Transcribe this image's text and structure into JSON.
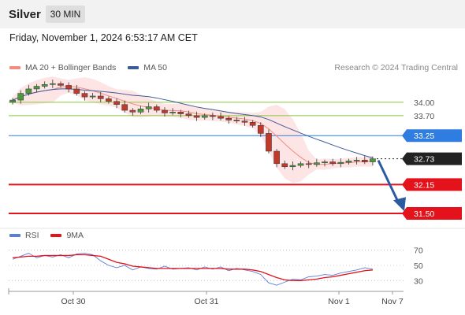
{
  "header": {
    "instrument": "Silver",
    "timeframe": "30 MIN"
  },
  "date_line": "Friday, November 1, 2024 6:53:17 AM CET",
  "legend": {
    "items": [
      {
        "label": "MA 20 + Bollinger Bands",
        "color": "#f28b82"
      },
      {
        "label": "MA 50",
        "color": "#3d5a98"
      }
    ],
    "attribution": "Research © 2024 Trading Central"
  },
  "rsi_legend": {
    "items": [
      {
        "label": "RSI",
        "color": "#5b7fd6"
      },
      {
        "label": "9MA",
        "color": "#e3121b"
      }
    ]
  },
  "colors": {
    "resistance": "#8cc63f",
    "pivot": "#2f7de1",
    "support": "#e3121b",
    "price": "#222222",
    "arrow": "#2c5aa0",
    "ma50": "#3d5a98",
    "ma20": "#f28b82",
    "bollinger": "#fde0e0"
  },
  "chart_data": [
    {
      "type": "candlestick",
      "x_tick_labels": [
        "Oct 30",
        "Oct 31",
        "Nov 1",
        "Nov 7"
      ],
      "ylim": [
        31.2,
        34.6
      ],
      "levels": [
        {
          "value": 34.0,
          "label": "34.00",
          "kind": "resistance"
        },
        {
          "value": 33.7,
          "label": "33.70",
          "kind": "resistance"
        },
        {
          "value": 33.25,
          "label": "33.25",
          "kind": "pivot"
        },
        {
          "value": 32.73,
          "label": "32.73",
          "kind": "last-price"
        },
        {
          "value": 32.15,
          "label": "32.15",
          "kind": "support"
        },
        {
          "value": 31.5,
          "label": "31.50",
          "kind": "support"
        }
      ],
      "series": [
        {
          "name": "MA 20 + Bollinger Bands"
        },
        {
          "name": "MA 50"
        }
      ],
      "price_path": [
        34.05,
        34.2,
        34.3,
        34.36,
        34.4,
        34.42,
        34.38,
        34.3,
        34.2,
        34.12,
        34.14,
        34.08,
        34.02,
        33.95,
        33.82,
        33.78,
        33.85,
        33.9,
        33.82,
        33.76,
        33.78,
        33.74,
        33.7,
        33.66,
        33.7,
        33.68,
        33.64,
        33.6,
        33.58,
        33.55,
        33.48,
        33.3,
        32.9,
        32.62,
        32.55,
        32.58,
        32.62,
        32.6,
        32.64,
        32.66,
        32.62,
        32.65,
        32.68,
        32.7,
        32.66,
        32.73
      ],
      "forecast": {
        "from": 32.73,
        "to": 31.55
      }
    },
    {
      "type": "line",
      "title": "RSI",
      "ylim": [
        20,
        80
      ],
      "y_ticks": [
        70,
        50,
        30
      ],
      "y_tick_labels": [
        "70",
        "50",
        "30"
      ],
      "series": [
        {
          "name": "RSI",
          "values": [
            58,
            62,
            66,
            60,
            63,
            61,
            64,
            60,
            65,
            66,
            64,
            56,
            50,
            47,
            50,
            44,
            48,
            46,
            45,
            49,
            45,
            46,
            47,
            44,
            48,
            45,
            48,
            43,
            46,
            44,
            42,
            38,
            27,
            24,
            28,
            32,
            31,
            35,
            36,
            38,
            37,
            40,
            42,
            44,
            47,
            45
          ]
        },
        {
          "name": "9MA",
          "values": [
            60,
            61,
            62,
            62,
            63,
            63,
            63,
            63,
            64,
            64,
            63,
            62,
            58,
            54,
            52,
            49,
            48,
            47,
            46,
            46,
            46,
            46,
            46,
            46,
            46,
            46,
            46,
            45,
            45,
            45,
            44,
            42,
            38,
            34,
            31,
            30,
            30,
            31,
            32,
            34,
            35,
            37,
            39,
            41,
            43,
            44
          ]
        }
      ]
    }
  ]
}
